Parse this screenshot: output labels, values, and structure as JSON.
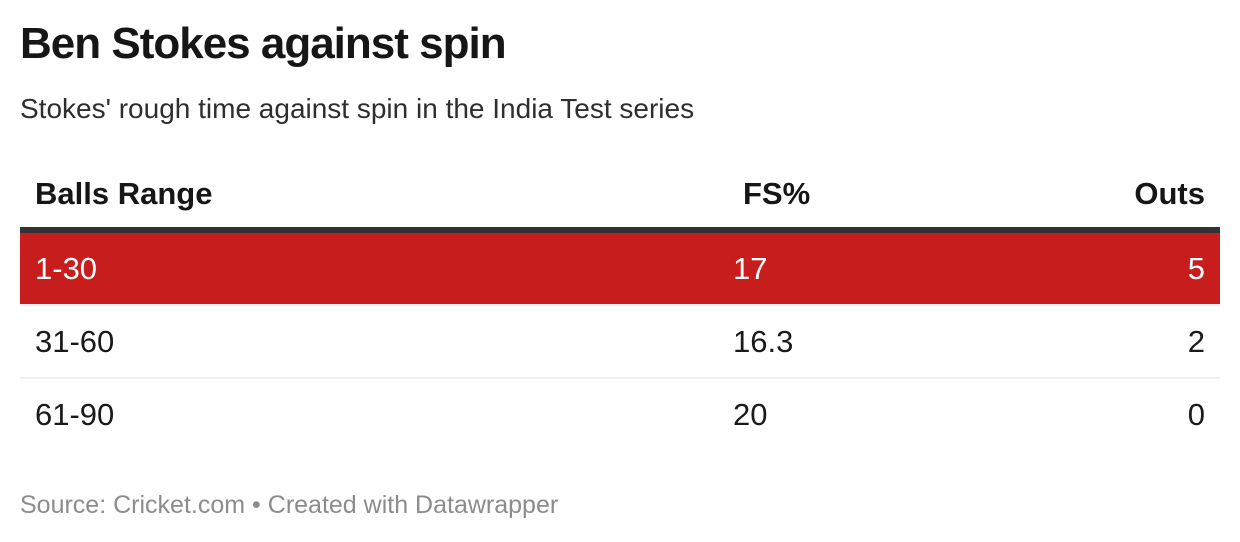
{
  "header": {
    "title": "Ben Stokes against spin",
    "subtitle": "Stokes' rough time against spin in the India Test series"
  },
  "table": {
    "columns": [
      {
        "label": "Balls Range",
        "align": "left"
      },
      {
        "label": "FS%",
        "align": "left"
      },
      {
        "label": "Outs",
        "align": "right"
      }
    ],
    "rows": [
      {
        "balls_range": "1-30",
        "fs_pct": "17",
        "outs": "5",
        "highlighted": true
      },
      {
        "balls_range": "31-60",
        "fs_pct": "16.3",
        "outs": "2",
        "highlighted": false
      },
      {
        "balls_range": "61-90",
        "fs_pct": "20",
        "outs": "0",
        "highlighted": false
      }
    ]
  },
  "footer": {
    "source_label": "Source:",
    "source_name": "Cricket.com",
    "separator": "•",
    "attribution": "Created with Datawrapper"
  },
  "colors": {
    "highlight_row_bg": "#c71e1d",
    "highlight_row_text": "#ffffff",
    "header_border": "#333333",
    "row_divider": "#efefef",
    "title_text": "#161616",
    "body_text": "#1a1a1a",
    "footer_text": "#8c8c8c"
  },
  "chart_data": {
    "type": "table",
    "title": "Ben Stokes against spin",
    "subtitle": "Stokes' rough time against spin in the India Test series",
    "columns": [
      "Balls Range",
      "FS%",
      "Outs"
    ],
    "rows": [
      [
        "1-30",
        17,
        5
      ],
      [
        "31-60",
        16.3,
        2
      ],
      [
        "61-90",
        20,
        0
      ]
    ],
    "highlighted_row": "1-30",
    "highlight_color": "#c71e1d",
    "source": "Cricket.com",
    "attribution": "Created with Datawrapper"
  }
}
